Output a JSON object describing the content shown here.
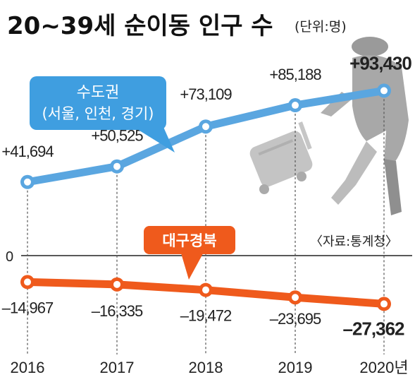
{
  "title": "20~39세 순이동 인구 수",
  "unit": "(단위:명)",
  "source": "〈자료:통계청〉",
  "colors": {
    "capital": "#5aa6e0",
    "capital_box": "#3f9ee0",
    "daegu": "#ef5a1c",
    "figure": "#b4b4b4"
  },
  "chart_data": {
    "type": "line",
    "x": [
      "2016",
      "2017",
      "2018",
      "2019",
      "2020년"
    ],
    "ylim": [
      -30000,
      100000
    ],
    "zero_label": "0",
    "series": [
      {
        "key": "capital",
        "name": "수도권",
        "name_sub": "(서울, 인천, 경기)",
        "values": [
          41694,
          50525,
          73109,
          85188,
          93430
        ],
        "labels": [
          "+41,694",
          "+50,525",
          "+73,109",
          "+85,188",
          "+93,430"
        ]
      },
      {
        "key": "daegu",
        "name": "대구경북",
        "values": [
          -14967,
          -16335,
          -19472,
          -23695,
          -27362
        ],
        "labels": [
          "–14,967",
          "–16,335",
          "–19,472",
          "–23,695",
          "–27,362"
        ]
      }
    ]
  }
}
